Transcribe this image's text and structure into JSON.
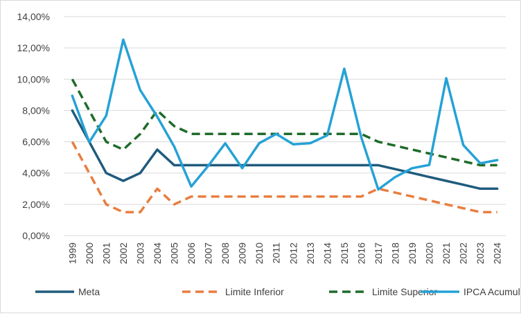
{
  "chart_data": {
    "type": "line",
    "title": "",
    "xlabel": "",
    "ylabel": "",
    "ylim": [
      0,
      14
    ],
    "y_ticks": [
      "0,00%",
      "2,00%",
      "4,00%",
      "6,00%",
      "8,00%",
      "10,00%",
      "12,00%",
      "14,00%"
    ],
    "grid": "horizontal",
    "legend": "bottom",
    "categories": [
      "1999",
      "2000",
      "2001",
      "2002",
      "2003",
      "2004",
      "2005",
      "2006",
      "2007",
      "2008",
      "2009",
      "2010",
      "2011",
      "2012",
      "2013",
      "2014",
      "2015",
      "2016",
      "2017",
      "2018",
      "2019",
      "2020",
      "2021",
      "2022",
      "2023",
      "2024"
    ],
    "series": [
      {
        "name": "Meta",
        "color": "#1f5b7d",
        "dash": "solid",
        "values": [
          8.0,
          6.0,
          4.0,
          3.5,
          4.0,
          5.5,
          4.5,
          4.5,
          4.5,
          4.5,
          4.5,
          4.5,
          4.5,
          4.5,
          4.5,
          4.5,
          4.5,
          4.5,
          4.5,
          4.25,
          4.0,
          3.75,
          3.5,
          3.25,
          3.0,
          3.0
        ]
      },
      {
        "name": "Limite Inferior",
        "color": "#e97d3e",
        "dash": "dashed",
        "values": [
          6.0,
          4.0,
          2.0,
          1.5,
          1.5,
          3.0,
          2.0,
          2.5,
          2.5,
          2.5,
          2.5,
          2.5,
          2.5,
          2.5,
          2.5,
          2.5,
          2.5,
          2.5,
          3.0,
          2.75,
          2.5,
          2.25,
          2.0,
          1.75,
          1.5,
          1.5
        ]
      },
      {
        "name": "Limite Superior",
        "color": "#1e6b2a",
        "dash": "dashed",
        "values": [
          10.0,
          8.0,
          6.0,
          5.5,
          6.5,
          8.0,
          7.0,
          6.5,
          6.5,
          6.5,
          6.5,
          6.5,
          6.5,
          6.5,
          6.5,
          6.5,
          6.5,
          6.5,
          6.0,
          5.75,
          5.5,
          5.25,
          5.0,
          4.75,
          4.5,
          4.5
        ]
      },
      {
        "name": "IPCA Acumulado",
        "color": "#25a2d6",
        "dash": "solid",
        "values": [
          8.94,
          5.97,
          7.67,
          12.53,
          9.3,
          7.6,
          5.69,
          3.14,
          4.46,
          5.9,
          4.31,
          5.91,
          6.5,
          5.84,
          5.91,
          6.41,
          10.67,
          6.29,
          2.95,
          3.75,
          4.31,
          4.52,
          10.06,
          5.79,
          4.62,
          4.83
        ]
      }
    ]
  }
}
